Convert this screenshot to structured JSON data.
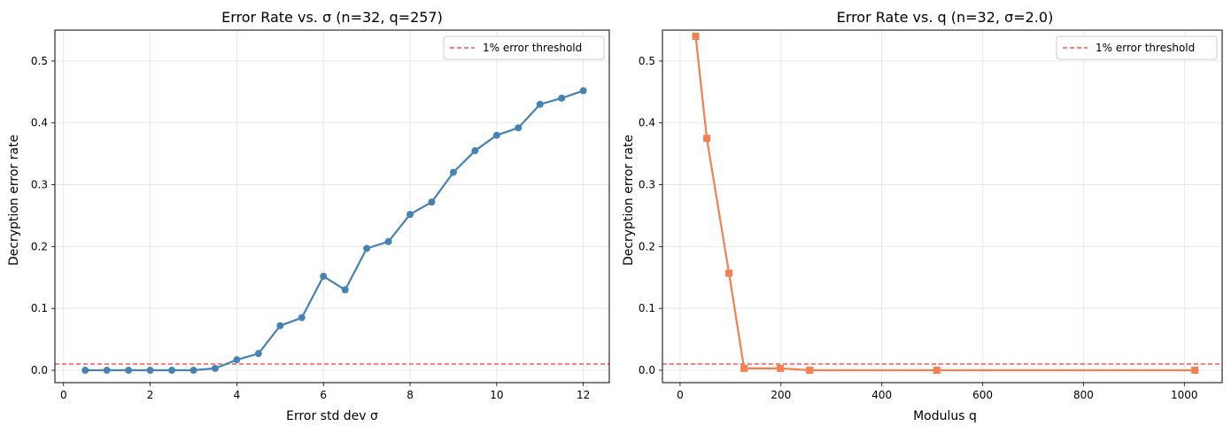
{
  "chart_data": [
    {
      "type": "line",
      "title": "Error Rate vs. σ (n=32, q=257)",
      "xlabel": "Error std dev σ",
      "ylabel": "Decryption error rate",
      "xlim": [
        -0.2,
        12.6
      ],
      "ylim": [
        -0.02,
        0.55
      ],
      "xticks": [
        0,
        2,
        4,
        6,
        8,
        10,
        12
      ],
      "yticks": [
        0.0,
        0.1,
        0.2,
        0.3,
        0.4,
        0.5
      ],
      "grid": true,
      "legend_position": "top-right",
      "series": [
        {
          "color": "#4682b4",
          "marker": "circle",
          "x": [
            0.5,
            1.0,
            1.5,
            2.0,
            2.5,
            3.0,
            3.5,
            4.0,
            4.5,
            5.0,
            5.5,
            6.0,
            6.5,
            7.0,
            7.5,
            8.0,
            8.5,
            9.0,
            9.5,
            10.0,
            10.5,
            11.0,
            11.5,
            12.0
          ],
          "y": [
            0.0,
            0.0,
            0.0,
            0.0,
            0.0,
            0.0,
            0.003,
            0.017,
            0.027,
            0.072,
            0.085,
            0.152,
            0.13,
            0.197,
            0.208,
            0.252,
            0.272,
            0.32,
            0.355,
            0.38,
            0.392,
            0.43,
            0.44,
            0.452
          ]
        }
      ],
      "threshold": {
        "name": "1% error threshold",
        "y": 0.01,
        "color": "#ff5555"
      }
    },
    {
      "type": "line",
      "title": "Error Rate vs. q (n=32, σ=2.0)",
      "xlabel": "Modulus q",
      "ylabel": "Decryption error rate",
      "xlim": [
        -35,
        1075
      ],
      "ylim": [
        -0.02,
        0.55
      ],
      "xticks": [
        0,
        200,
        400,
        600,
        800,
        1000
      ],
      "yticks": [
        0.0,
        0.1,
        0.2,
        0.3,
        0.4,
        0.5
      ],
      "grid": true,
      "legend_position": "top-right",
      "series": [
        {
          "color": "#f47f50",
          "marker": "square",
          "x": [
            31,
            53,
            97,
            127,
            199,
            257,
            509,
            1021
          ],
          "y": [
            0.54,
            0.375,
            0.157,
            0.003,
            0.003,
            0.0,
            0.0,
            0.0
          ]
        }
      ],
      "threshold": {
        "name": "1% error threshold",
        "y": 0.01,
        "color": "#ff5555"
      }
    }
  ]
}
